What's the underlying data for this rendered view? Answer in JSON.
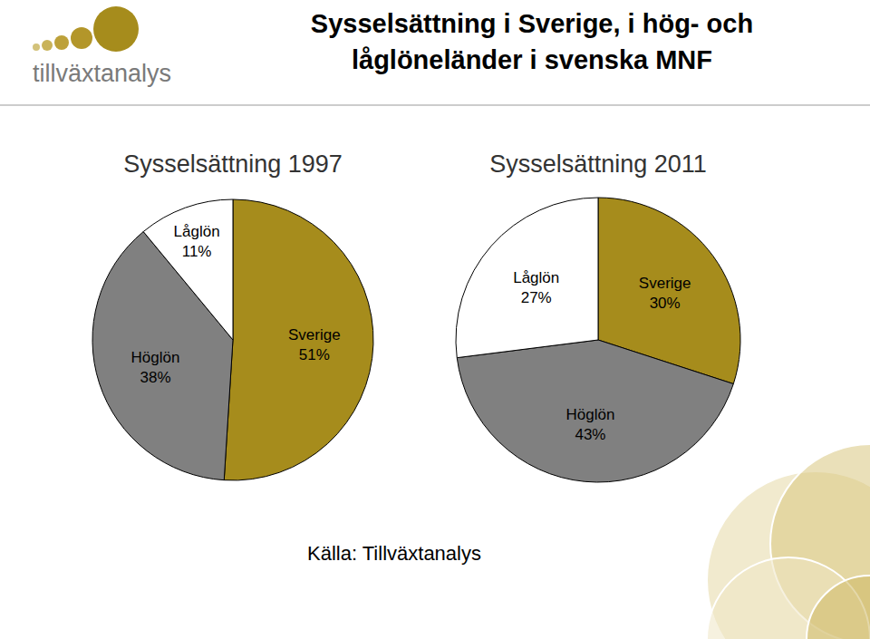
{
  "header": {
    "title": [
      "Sysselsättning i Sverige, i hög- och",
      "låglöneländer i svenska MNF"
    ],
    "logo": "tillväxtanalys"
  },
  "chart_data": [
    {
      "type": "pie",
      "title": "Sysselsättning 1997",
      "categories": [
        "Sverige",
        "Höglön",
        "Låglön"
      ],
      "values": [
        51,
        38,
        11
      ],
      "value_labels": [
        "51%",
        "38%",
        "11%"
      ],
      "colors": [
        "#a68c1c",
        "#808080",
        "#ffffff"
      ],
      "data_labels": true
    },
    {
      "type": "pie",
      "title": "Sysselsättning 2011",
      "categories": [
        "Sverige",
        "Höglön",
        "Låglön"
      ],
      "values": [
        30,
        43,
        27
      ],
      "value_labels": [
        "30%",
        "43%",
        "27%"
      ],
      "colors": [
        "#a68c1c",
        "#808080",
        "#ffffff"
      ],
      "data_labels": true
    }
  ],
  "footer": {
    "source": "Källa: Tillväxtanalys"
  }
}
